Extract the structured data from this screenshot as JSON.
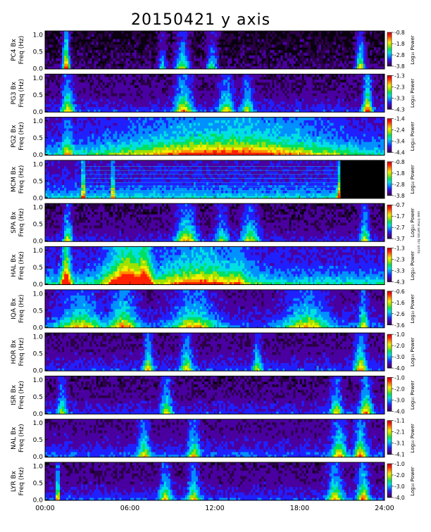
{
  "title": "20150421 y axis",
  "side_note": "see time series for units",
  "chart_data": [
    {
      "type": "heatmap",
      "station": "PC4",
      "ylabel_1": "PC4  Bx",
      "ylabel_2": "Freq (Hz)",
      "y_ticks": [
        "0.0",
        "0.5",
        "1.0"
      ],
      "ylim": [
        0,
        1.0
      ],
      "colorbar_ticks": [
        "-0.8",
        "-1.8",
        "-2.8",
        "-3.8"
      ],
      "colorbar_label": "Log₁₀ Power",
      "base": 0.08,
      "bursts": [
        [
          1.5,
          0.25,
          0.85
        ],
        [
          8.3,
          0.3,
          0.35
        ],
        [
          9.7,
          0.5,
          0.5
        ],
        [
          11.8,
          0.4,
          0.4
        ],
        [
          22.3,
          0.3,
          0.6
        ]
      ]
    },
    {
      "type": "heatmap",
      "station": "PG3",
      "ylabel_1": "PG3  Bx",
      "ylabel_2": "Freq (Hz)",
      "y_ticks": [
        "0.0",
        "0.5",
        "1.0"
      ],
      "ylim": [
        0,
        1.0
      ],
      "colorbar_ticks": [
        "-1.3",
        "-2.3",
        "-3.3",
        "-4.3"
      ],
      "colorbar_label": "Log₁₀ Power",
      "base": 0.18,
      "bursts": [
        [
          1.6,
          0.4,
          0.5
        ],
        [
          9.8,
          0.6,
          0.55
        ],
        [
          12.8,
          0.5,
          0.45
        ],
        [
          14.3,
          0.4,
          0.4
        ],
        [
          22.8,
          0.3,
          0.7
        ]
      ]
    },
    {
      "type": "heatmap",
      "station": "PG2",
      "ylabel_1": "PG2  Bx",
      "ylabel_2": "Freq (Hz)",
      "y_ticks": [
        "0.0",
        "0.5",
        "1.0"
      ],
      "ylim": [
        0,
        1.0
      ],
      "colorbar_ticks": [
        "-1.4",
        "-2.4",
        "-3.4",
        "-4.4"
      ],
      "colorbar_label": "Log₁₀ Power",
      "base": 0.28,
      "bursts": [
        [
          1.6,
          0.4,
          0.4
        ],
        [
          10.0,
          0.5,
          0.4
        ],
        [
          13.0,
          8.0,
          0.55
        ],
        [
          17.0,
          3.0,
          0.35
        ]
      ]
    },
    {
      "type": "heatmap",
      "station": "MCM",
      "ylabel_1": "MCM  Bx",
      "ylabel_2": "Freq (Hz)",
      "y_ticks": [
        "0.0",
        "0.5",
        "1.0"
      ],
      "ylim": [
        0,
        1.0
      ],
      "colorbar_ticks": [
        "-0.8",
        "-1.8",
        "-2.8",
        "-3.8"
      ],
      "colorbar_label": "Log₁₀ Power",
      "base": 0.32,
      "bursts": [
        [
          2.7,
          0.1,
          0.8
        ],
        [
          4.8,
          0.1,
          0.7
        ],
        [
          20.8,
          0.15,
          0.6
        ],
        [
          23.8,
          0.05,
          0.9
        ]
      ]
    },
    {
      "type": "heatmap",
      "station": "SPA",
      "ylabel_1": "SPA  Bx",
      "ylabel_2": "Freq (Hz)",
      "y_ticks": [
        "0.0",
        "0.5",
        "1.0"
      ],
      "ylim": [
        0,
        1.0
      ],
      "colorbar_ticks": [
        "-0.7",
        "-1.7",
        "-2.7",
        "-3.7"
      ],
      "colorbar_label": "Log₁₀ Power",
      "base": 0.16,
      "bursts": [
        [
          1.6,
          0.3,
          0.5
        ],
        [
          10.0,
          0.7,
          0.55
        ],
        [
          14.5,
          0.6,
          0.45
        ],
        [
          12.5,
          0.5,
          0.35
        ],
        [
          22.6,
          0.3,
          0.5
        ]
      ]
    },
    {
      "type": "heatmap",
      "station": "HAL",
      "ylabel_1": "HAL  Bx",
      "ylabel_2": "Freq (Hz)",
      "y_ticks": [
        "0.0",
        "0.5",
        "1.0"
      ],
      "ylim": [
        0,
        1.0
      ],
      "colorbar_ticks": [
        "-1.3",
        "-2.3",
        "-3.3",
        "-4.3"
      ],
      "colorbar_label": "Log₁₀ Power",
      "base": 0.35,
      "bursts": [
        [
          1.5,
          0.3,
          0.85
        ],
        [
          5.8,
          1.4,
          0.8
        ],
        [
          7.0,
          0.6,
          0.9
        ],
        [
          11.0,
          3.0,
          0.45
        ],
        [
          13.5,
          0.8,
          0.4
        ]
      ]
    },
    {
      "type": "heatmap",
      "station": "IQA",
      "ylabel_1": "IQA  Bx",
      "ylabel_2": "Freq (Hz)",
      "y_ticks": [
        "0.0",
        "0.5",
        "1.0"
      ],
      "ylim": [
        0,
        1.0
      ],
      "colorbar_ticks": [
        "-0.6",
        "-1.6",
        "-2.6",
        "-3.6"
      ],
      "colorbar_label": "Log₁₀ Power",
      "base": 0.22,
      "bursts": [
        [
          2.5,
          1.5,
          0.45
        ],
        [
          5.5,
          1.0,
          0.5
        ],
        [
          10.5,
          1.5,
          0.45
        ],
        [
          18.5,
          1.5,
          0.45
        ],
        [
          22.5,
          0.3,
          0.45
        ]
      ]
    },
    {
      "type": "heatmap",
      "station": "HOR",
      "ylabel_1": "HOR  Bx",
      "ylabel_2": "Freq (Hz)",
      "y_ticks": [
        "0.0",
        "0.5",
        "1.0"
      ],
      "ylim": [
        0,
        1.0
      ],
      "colorbar_ticks": [
        "-1.0",
        "-2.0",
        "-3.0",
        "-4.0"
      ],
      "colorbar_label": "Log₁₀ Power",
      "base": 0.2,
      "bursts": [
        [
          7.3,
          0.3,
          0.5
        ],
        [
          10.0,
          0.4,
          0.45
        ],
        [
          22.3,
          0.4,
          0.55
        ],
        [
          15.0,
          0.3,
          0.4
        ]
      ]
    },
    {
      "type": "heatmap",
      "station": "ISR",
      "ylabel_1": "ISR  Bx",
      "ylabel_2": "Freq (Hz)",
      "y_ticks": [
        "0.0",
        "0.5",
        "1.0"
      ],
      "ylim": [
        0,
        1.0
      ],
      "colorbar_ticks": [
        "-1.0",
        "-2.0",
        "-3.0",
        "-4.0"
      ],
      "colorbar_label": "Log₁₀ Power",
      "base": 0.18,
      "bursts": [
        [
          1.2,
          0.3,
          0.4
        ],
        [
          8.6,
          0.4,
          0.45
        ],
        [
          20.6,
          0.4,
          0.45
        ],
        [
          22.7,
          0.4,
          0.6
        ]
      ]
    },
    {
      "type": "heatmap",
      "station": "NAL",
      "ylabel_1": "NAL  Bx",
      "ylabel_2": "Freq (Hz)",
      "y_ticks": [
        "0.0",
        "0.5",
        "1.0"
      ],
      "ylim": [
        0,
        1.0
      ],
      "colorbar_ticks": [
        "-1.1",
        "-2.1",
        "-3.1",
        "-4.1"
      ],
      "colorbar_label": "Log₁₀ Power",
      "base": 0.22,
      "bursts": [
        [
          7.0,
          0.4,
          0.45
        ],
        [
          10.5,
          0.4,
          0.45
        ],
        [
          20.8,
          0.5,
          0.5
        ],
        [
          22.3,
          0.4,
          0.55
        ]
      ]
    },
    {
      "type": "heatmap",
      "station": "LYR",
      "ylabel_1": "LYR  Bx",
      "ylabel_2": "Freq (Hz)",
      "y_ticks": [
        "0.0",
        "0.5",
        "1.0"
      ],
      "ylim": [
        0,
        1.0
      ],
      "colorbar_ticks": [
        "-1.0",
        "-2.0",
        "-3.0",
        "-4.0"
      ],
      "colorbar_label": "Log₁₀ Power",
      "base": 0.2,
      "bursts": [
        [
          0.9,
          0.1,
          0.8
        ],
        [
          8.5,
          0.4,
          0.45
        ],
        [
          10.5,
          0.4,
          0.45
        ],
        [
          20.5,
          0.5,
          0.5
        ],
        [
          22.5,
          0.4,
          0.55
        ]
      ]
    }
  ],
  "x_axis": {
    "ticks": [
      "00:00",
      "06:00",
      "12:00",
      "18:00",
      "24:00"
    ],
    "xlim": [
      0,
      24
    ],
    "unit": "hours UT"
  },
  "colormap": [
    "#2b0048",
    "#4a00a0",
    "#2020ff",
    "#0090ff",
    "#00e0e0",
    "#00e060",
    "#a0e000",
    "#f0f000",
    "#ff9000",
    "#ff2000",
    "#d00000"
  ]
}
